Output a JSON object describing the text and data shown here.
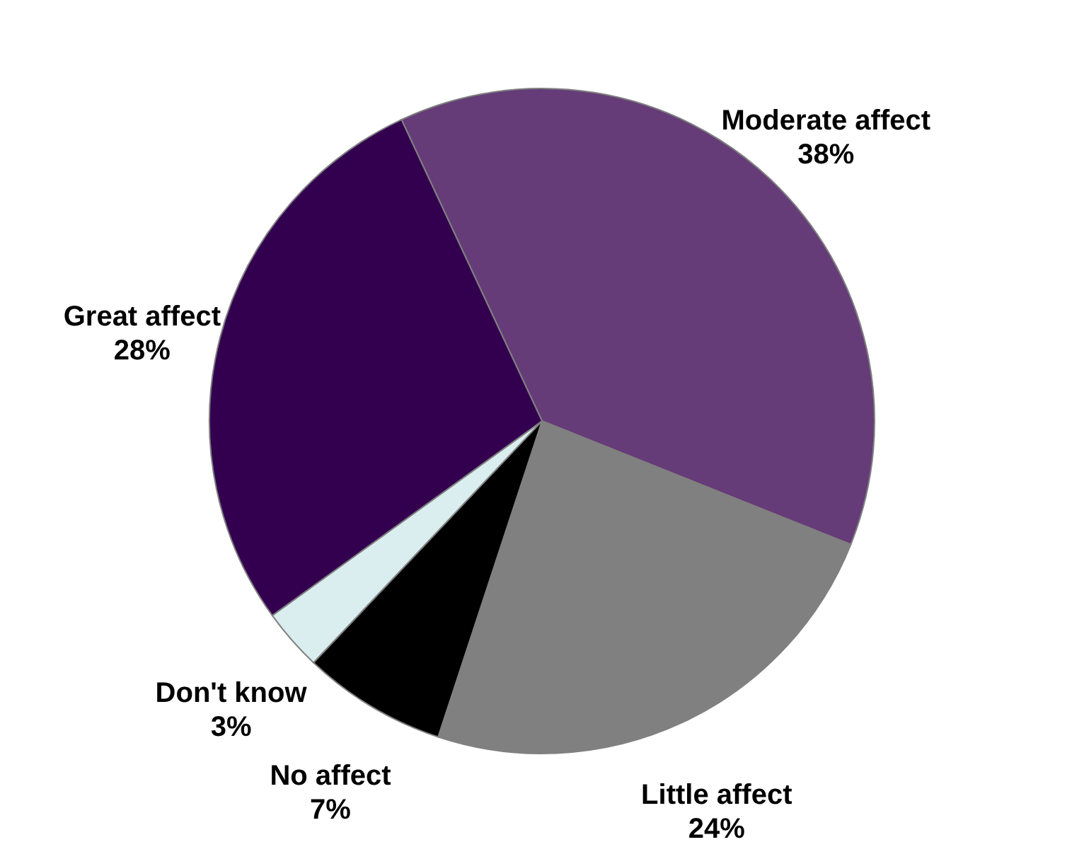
{
  "chart_data": {
    "type": "pie",
    "categories": [
      "Moderate affect",
      "Little affect",
      "No affect",
      "Don't know",
      "Great affect"
    ],
    "values": [
      38,
      24,
      7,
      3,
      28
    ],
    "value_labels": [
      "38%",
      "24%",
      "7%",
      "3%",
      "28%"
    ],
    "colors": [
      "#653c78",
      "#808080",
      "#000000",
      "#daeef0",
      "#330050"
    ]
  }
}
